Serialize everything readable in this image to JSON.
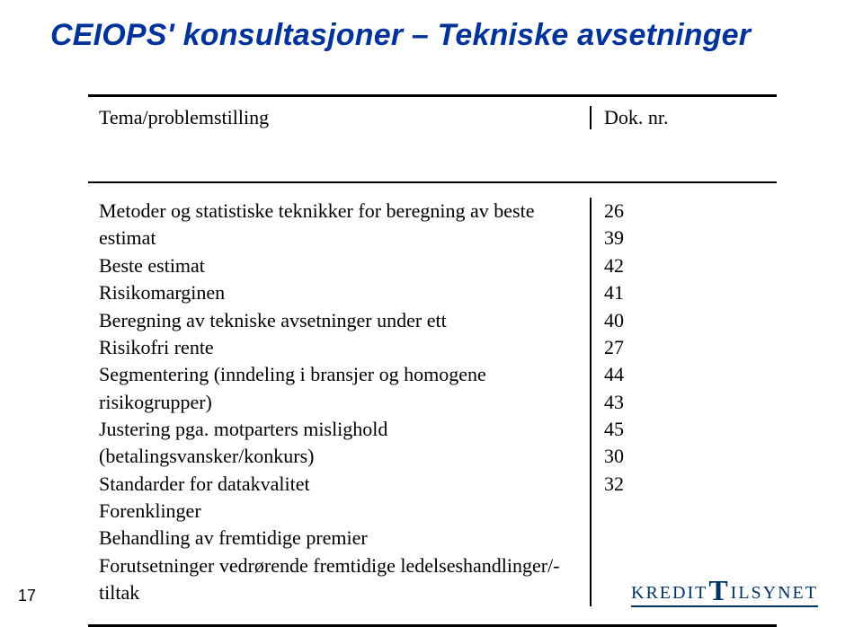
{
  "title": "CEIOPS' konsultasjoner – Tekniske avsetninger",
  "colors": {
    "title": "#003399",
    "logo": "#003366",
    "text": "#000000",
    "bg": "#ffffff"
  },
  "header": {
    "left": "Tema/problemstilling",
    "right": "Dok. nr."
  },
  "rows": [
    {
      "topic": "Metoder og statistiske teknikker for beregning av beste estimat",
      "nr": "26"
    },
    {
      "topic": "Beste estimat",
      "nr": "39"
    },
    {
      "topic": "Risikomarginen",
      "nr": "42"
    },
    {
      "topic": "Beregning av tekniske avsetninger under ett",
      "nr": "41"
    },
    {
      "topic": "Risikofri rente",
      "nr": "40"
    },
    {
      "topic": "Segmentering (inndeling i bransjer og homogene risikogrupper)",
      "nr": "27"
    },
    {
      "topic": "Justering pga. motparters mislighold (betalingsvansker/konkurs)",
      "nr": "44"
    },
    {
      "topic": "Standarder for datakvalitet",
      "nr": "43"
    },
    {
      "topic": "Forenklinger",
      "nr": "45"
    },
    {
      "topic": "Behandling av fremtidige premier",
      "nr": "30"
    },
    {
      "topic": "Forutsetninger vedrørende fremtidige ledelseshandlinger/-tiltak",
      "nr": "32"
    }
  ],
  "page_number": "17",
  "logo": {
    "pre": "KREDIT",
    "big": "T",
    "post": "ILSYNET"
  },
  "typography": {
    "title_fontsize": 34,
    "body_fontsize": 22,
    "page_number_fontsize": 18
  }
}
